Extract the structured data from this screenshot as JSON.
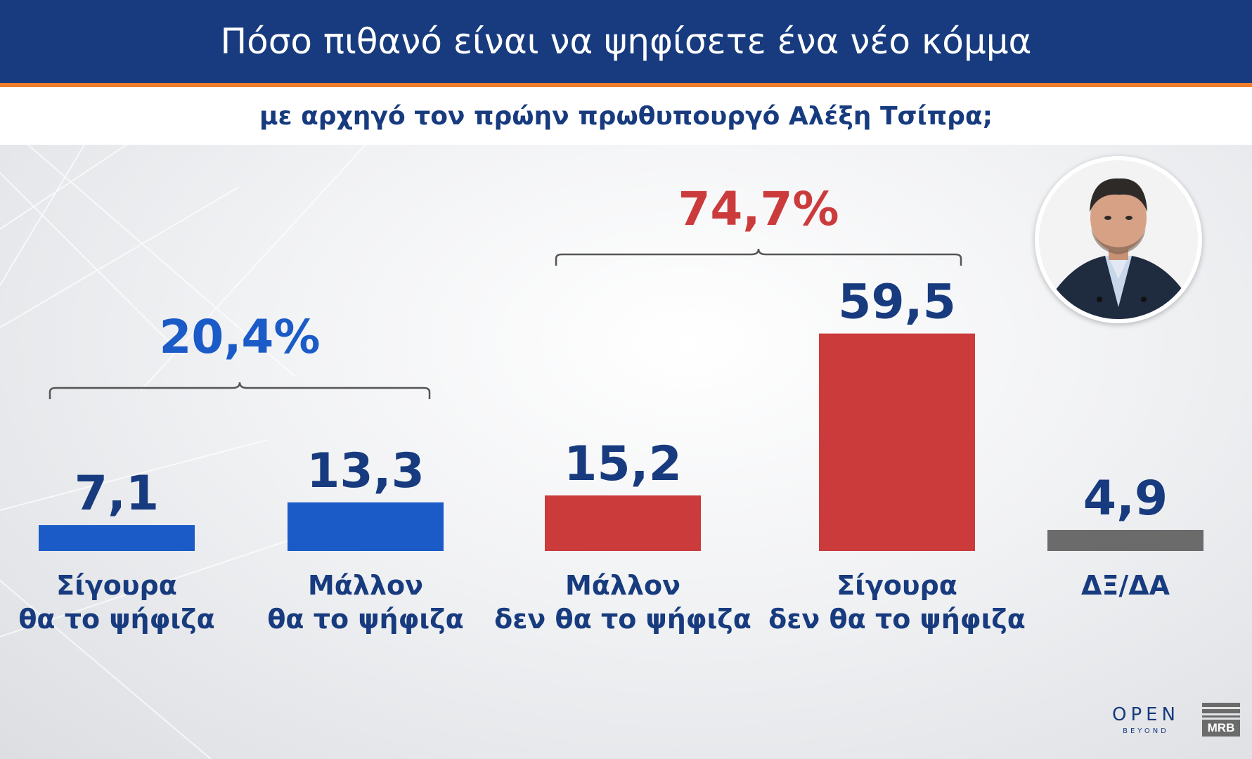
{
  "header": {
    "title": "Πόσο πιθανό είναι να ψηφίσετε ένα νέο κόμμα",
    "subtitle": "με αρχηγό τον πρώην πρωθυπουργό Αλέξη Τσίπρα;"
  },
  "colors": {
    "header_bg": "#173b7e",
    "accent_orange": "#ef7d2b",
    "blue_bars": "#1b5bc8",
    "red_bars": "#cc3b3b",
    "gray_bar": "#6b6b6b",
    "value_text": "#173b7e",
    "red_total": "#cc3b3b",
    "blue_total": "#1b5bc8"
  },
  "chart_data": {
    "type": "bar",
    "title": "Πόσο πιθανό είναι να ψηφίσετε ένα νέο κόμμα",
    "subtitle": "με αρχηγό τον πρώην πρωθυπουργό Αλέξη Τσίπρα;",
    "categories": [
      [
        "Σίγουρα",
        "θα το ψήφιζα"
      ],
      [
        "Μάλλον",
        "θα το ψήφιζα"
      ],
      [
        "Μάλλον",
        "δεν θα το ψήφιζα"
      ],
      [
        "Σίγουρα",
        "δεν θα το ψήφιζα"
      ],
      [
        "ΔΞ/ΔΑ"
      ]
    ],
    "values": [
      7.1,
      13.3,
      15.2,
      59.5,
      4.9
    ],
    "value_labels": [
      "7,1",
      "13,3",
      "15,2",
      "59,5",
      "4,9"
    ],
    "bar_colors": [
      "#1b5bc8",
      "#1b5bc8",
      "#cc3b3b",
      "#cc3b3b",
      "#6b6b6b"
    ],
    "groups": [
      {
        "label": "20,4%",
        "color": "#1b5bc8",
        "from": 0,
        "to": 1
      },
      {
        "label": "74,7%",
        "color": "#cc3b3b",
        "from": 2,
        "to": 3
      }
    ],
    "ylim": [
      0,
      60
    ],
    "grid": false
  },
  "logos": {
    "open_main": "OPEN",
    "open_sub": "BEYOND",
    "mrb": "MRB"
  },
  "icons": {
    "portrait": "person-portrait-icon"
  }
}
